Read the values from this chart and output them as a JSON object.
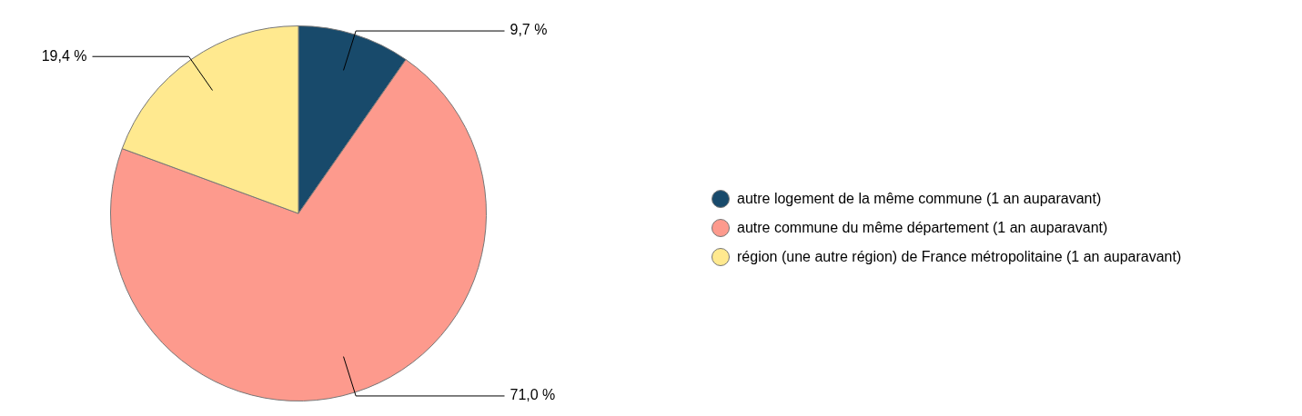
{
  "chart_data": {
    "type": "pie",
    "categories": [
      "autre logement de la même commune (1 an auparavant)",
      "autre commune du même département (1 an auparavant)",
      "région (une autre région) de France métropolitaine (1 an auparavant)"
    ],
    "values": [
      9.7,
      71.0,
      19.4
    ],
    "colors": [
      "#184a6b",
      "#fd9a8d",
      "#ffe98f"
    ],
    "value_labels": [
      "9,7 %",
      "71,0 %",
      "19,4 %"
    ],
    "legend": "right"
  }
}
